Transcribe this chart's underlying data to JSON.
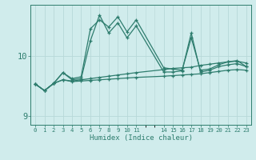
{
  "xlabel": "Humidex (Indice chaleur)",
  "bg_color": "#d0ecec",
  "line_color": "#2e7d6e",
  "grid_color": "#b8d8d8",
  "ylim": [
    8.85,
    10.85
  ],
  "yticks": [
    9,
    10
  ],
  "x_full": [
    0,
    1,
    2,
    3,
    4,
    5,
    6,
    7,
    8,
    9,
    10,
    11,
    14,
    15,
    16,
    17,
    18,
    19,
    20,
    21,
    22,
    23
  ],
  "y_zigzag": [
    9.53,
    9.42,
    9.54,
    9.72,
    9.6,
    9.62,
    10.25,
    10.68,
    10.38,
    10.55,
    10.3,
    10.5,
    9.73,
    9.73,
    9.75,
    10.38,
    9.73,
    9.76,
    9.82,
    9.85,
    9.87,
    9.82
  ],
  "y_zigzag2": [
    9.53,
    9.42,
    9.54,
    9.72,
    9.62,
    9.65,
    10.45,
    10.6,
    10.48,
    10.65,
    10.4,
    10.6,
    9.8,
    9.78,
    9.76,
    10.3,
    9.76,
    9.78,
    9.85,
    9.9,
    9.92,
    9.82
  ],
  "y_smooth1": [
    9.53,
    9.42,
    9.54,
    9.6,
    9.57,
    9.58,
    9.59,
    9.6,
    9.61,
    9.62,
    9.63,
    9.64,
    9.66,
    9.67,
    9.68,
    9.69,
    9.7,
    9.72,
    9.74,
    9.76,
    9.77,
    9.76
  ],
  "y_smooth2": [
    9.53,
    9.42,
    9.54,
    9.6,
    9.58,
    9.6,
    9.62,
    9.64,
    9.66,
    9.68,
    9.7,
    9.72,
    9.77,
    9.79,
    9.8,
    9.81,
    9.84,
    9.86,
    9.88,
    9.9,
    9.91,
    9.88
  ]
}
